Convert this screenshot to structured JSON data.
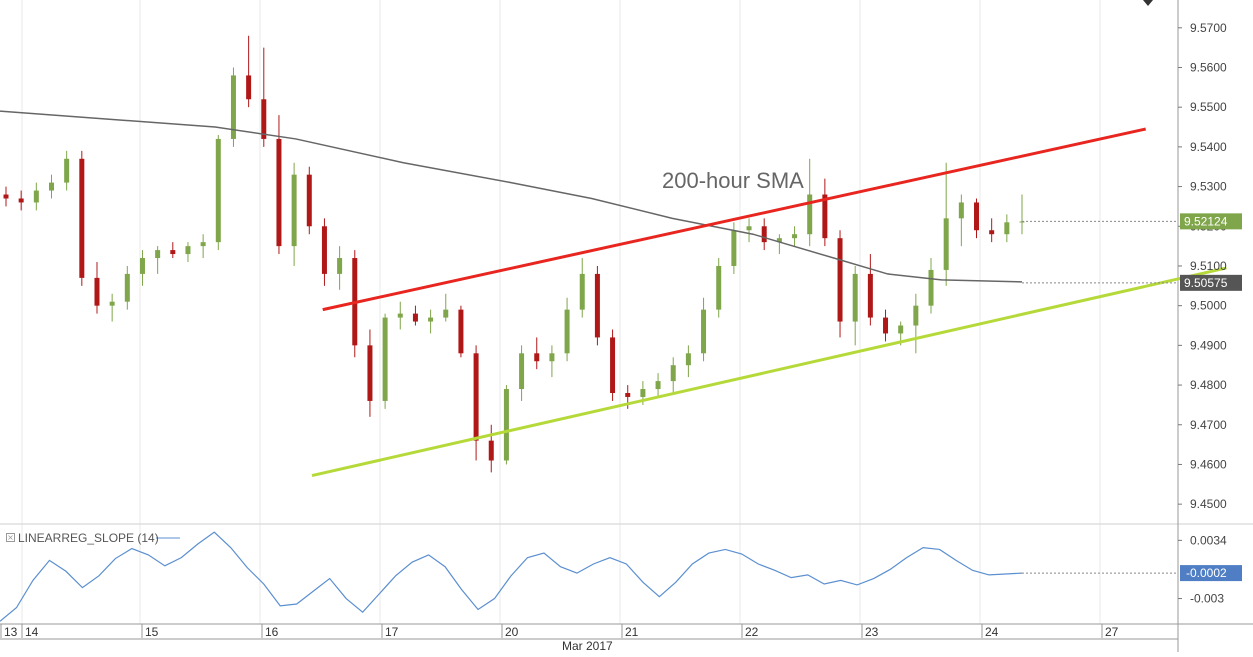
{
  "chart_data": [
    {
      "type": "candlestick",
      "annotation": "200-hour SMA",
      "price_axis": {
        "ticks": [
          "9.5700",
          "9.5600",
          "9.5500",
          "9.5400",
          "9.5300",
          "9.5200",
          "9.5100",
          "9.5000",
          "9.4900",
          "9.4800",
          "9.4700",
          "9.4600",
          "9.4500"
        ],
        "ylim": [
          9.445,
          9.577
        ]
      },
      "last_price_label": "9.52124",
      "sma_label": "9.50575",
      "x_axis": {
        "day_labels": [
          "13",
          "14",
          "15",
          "16",
          "17",
          "20",
          "21",
          "22",
          "23",
          "24",
          "27"
        ],
        "month_label": "Mar 2017"
      },
      "colors": {
        "up": "#7fa64a",
        "down": "#b01818",
        "sma": "#666666",
        "resistance": "#e8251f",
        "support": "#b6d93a",
        "indicator": "#5b8fd0",
        "badge_price": "#7fa64a",
        "badge_sma": "#555555",
        "badge_indicator": "#4f7ec4"
      },
      "trendlines": [
        {
          "name": "resistance",
          "from": [
            60,
            9.499
          ],
          "to": [
            213,
            9.5445
          ]
        },
        {
          "name": "support",
          "from": [
            58,
            9.4572
          ],
          "to": [
            228,
            9.5095
          ]
        }
      ],
      "sma_points": [
        [
          0,
          9.549
        ],
        [
          20,
          9.547
        ],
        [
          40,
          9.545
        ],
        [
          55,
          9.542
        ],
        [
          75,
          9.536
        ],
        [
          95,
          9.531
        ],
        [
          110,
          9.527
        ],
        [
          125,
          9.522
        ],
        [
          140,
          9.518
        ],
        [
          155,
          9.512
        ],
        [
          165,
          9.508
        ],
        [
          175,
          9.5065
        ],
        [
          190,
          9.506
        ]
      ],
      "candles": [
        [
          9.528,
          9.53,
          9.525,
          9.527
        ],
        [
          9.527,
          9.529,
          9.524,
          9.526
        ],
        [
          9.526,
          9.531,
          9.524,
          9.529
        ],
        [
          9.529,
          9.533,
          9.527,
          9.531
        ],
        [
          9.531,
          9.539,
          9.529,
          9.537
        ],
        [
          9.537,
          9.539,
          9.505,
          9.507
        ],
        [
          9.507,
          9.511,
          9.498,
          9.5
        ],
        [
          9.5,
          9.503,
          9.496,
          9.501
        ],
        [
          9.501,
          9.51,
          9.499,
          9.508
        ],
        [
          9.508,
          9.514,
          9.505,
          9.512
        ],
        [
          9.512,
          9.515,
          9.508,
          9.514
        ],
        [
          9.514,
          9.516,
          9.512,
          9.513
        ],
        [
          9.513,
          9.516,
          9.511,
          9.515
        ],
        [
          9.515,
          9.518,
          9.512,
          9.516
        ],
        [
          9.516,
          9.543,
          9.514,
          9.542
        ],
        [
          9.542,
          9.56,
          9.54,
          9.558
        ],
        [
          9.558,
          9.568,
          9.55,
          9.552
        ],
        [
          9.552,
          9.565,
          9.54,
          9.542
        ],
        [
          9.542,
          9.548,
          9.513,
          9.515
        ],
        [
          9.515,
          9.536,
          9.51,
          9.533
        ],
        [
          9.533,
          9.535,
          9.518,
          9.52
        ],
        [
          9.52,
          9.522,
          9.505,
          9.508
        ],
        [
          9.508,
          9.515,
          9.504,
          9.512
        ],
        [
          9.512,
          9.514,
          9.487,
          9.49
        ],
        [
          9.49,
          9.494,
          9.472,
          9.476
        ],
        [
          9.476,
          9.498,
          9.474,
          9.497
        ],
        [
          9.497,
          9.501,
          9.494,
          9.498
        ],
        [
          9.498,
          9.5,
          9.495,
          9.496
        ],
        [
          9.496,
          9.499,
          9.493,
          9.497
        ],
        [
          9.497,
          9.503,
          9.496,
          9.499
        ],
        [
          9.499,
          9.5,
          9.487,
          9.488
        ],
        [
          9.488,
          9.49,
          9.461,
          9.466
        ],
        [
          9.466,
          9.47,
          9.458,
          9.461
        ],
        [
          9.461,
          9.48,
          9.46,
          9.479
        ],
        [
          9.479,
          9.49,
          9.476,
          9.488
        ],
        [
          9.488,
          9.492,
          9.484,
          9.486
        ],
        [
          9.486,
          9.49,
          9.482,
          9.488
        ],
        [
          9.488,
          9.502,
          9.486,
          9.499
        ],
        [
          9.499,
          9.512,
          9.497,
          9.508
        ],
        [
          9.508,
          9.51,
          9.49,
          9.492
        ],
        [
          9.492,
          9.494,
          9.476,
          9.478
        ],
        [
          9.478,
          9.48,
          9.474,
          9.477
        ],
        [
          9.477,
          9.481,
          9.475,
          9.479
        ],
        [
          9.479,
          9.483,
          9.477,
          9.481
        ],
        [
          9.481,
          9.487,
          9.478,
          9.485
        ],
        [
          9.485,
          9.49,
          9.482,
          9.488
        ],
        [
          9.488,
          9.502,
          9.486,
          9.499
        ],
        [
          9.499,
          9.512,
          9.497,
          9.51
        ],
        [
          9.51,
          9.521,
          9.508,
          9.519
        ],
        [
          9.519,
          9.522,
          9.516,
          9.52
        ],
        [
          9.52,
          9.522,
          9.514,
          9.516
        ],
        [
          9.516,
          9.518,
          9.513,
          9.517
        ],
        [
          9.517,
          9.52,
          9.515,
          9.518
        ],
        [
          9.518,
          9.537,
          9.515,
          9.528
        ],
        [
          9.528,
          9.532,
          9.515,
          9.517
        ],
        [
          9.517,
          9.519,
          9.492,
          9.496
        ],
        [
          9.496,
          9.51,
          9.49,
          9.508
        ],
        [
          9.508,
          9.513,
          9.495,
          9.497
        ],
        [
          9.497,
          9.499,
          9.491,
          9.493
        ],
        [
          9.493,
          9.496,
          9.49,
          9.495
        ],
        [
          9.495,
          9.503,
          9.488,
          9.5
        ],
        [
          9.5,
          9.512,
          9.498,
          9.509
        ],
        [
          9.509,
          9.536,
          9.505,
          9.522
        ],
        [
          9.522,
          9.528,
          9.515,
          9.526
        ],
        [
          9.526,
          9.527,
          9.517,
          9.519
        ],
        [
          9.519,
          9.522,
          9.516,
          9.518
        ],
        [
          9.518,
          9.523,
          9.516,
          9.521
        ],
        [
          9.521,
          9.528,
          9.518,
          9.5212
        ]
      ]
    },
    {
      "type": "line",
      "series_name": "LINEARREG_SLOPE (14)",
      "ticks": [
        "0.0034",
        "-0.003"
      ],
      "last_value_label": "-0.0002",
      "ylim": [
        -0.0058,
        0.0052
      ],
      "values": [
        -0.0055,
        -0.004,
        -0.001,
        0.0012,
        0.0,
        -0.0018,
        -0.0005,
        0.0014,
        0.0025,
        0.0018,
        0.0006,
        0.0015,
        0.003,
        0.0043,
        0.0026,
        0.0004,
        -0.0014,
        -0.0038,
        -0.0036,
        -0.0022,
        -0.0008,
        -0.003,
        -0.0045,
        -0.0025,
        -0.0005,
        0.001,
        0.0018,
        0.0005,
        -0.002,
        -0.0042,
        -0.003,
        -0.0005,
        0.0015,
        0.002,
        0.0005,
        -0.0002,
        0.0008,
        0.0015,
        0.0008,
        -0.0012,
        -0.0028,
        -0.0012,
        0.0008,
        0.002,
        0.0024,
        0.0019,
        0.0008,
        0.0001,
        -0.0007,
        -0.0004,
        -0.0014,
        -0.001,
        -0.0015,
        -0.0008,
        0.0002,
        0.0015,
        0.0026,
        0.0024,
        0.0012,
        0.0001,
        -0.0004,
        -0.0003,
        -0.0002
      ]
    }
  ]
}
